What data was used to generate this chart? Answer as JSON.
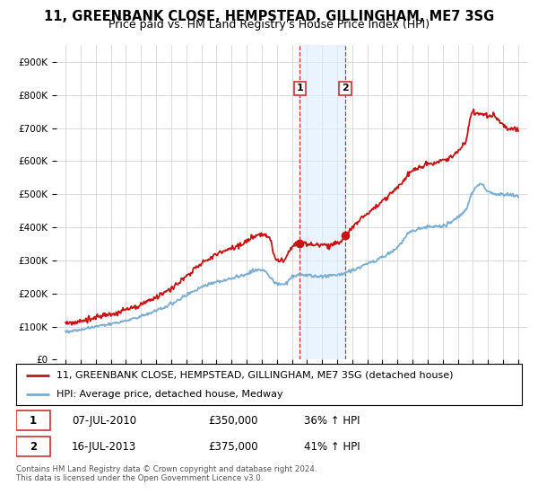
{
  "title": "11, GREENBANK CLOSE, HEMPSTEAD, GILLINGHAM, ME7 3SG",
  "subtitle": "Price paid vs. HM Land Registry's House Price Index (HPI)",
  "legend_line1": "11, GREENBANK CLOSE, HEMPSTEAD, GILLINGHAM, ME7 3SG (detached house)",
  "legend_line2": "HPI: Average price, detached house, Medway",
  "footnote": "Contains HM Land Registry data © Crown copyright and database right 2024.\nThis data is licensed under the Open Government Licence v3.0.",
  "sale1_date": "07-JUL-2010",
  "sale1_price": "£350,000",
  "sale1_hpi": "36% ↑ HPI",
  "sale2_date": "16-JUL-2013",
  "sale2_price": "£375,000",
  "sale2_hpi": "41% ↑ HPI",
  "hpi_color": "#7aadd4",
  "price_color": "#cc1111",
  "marker_color": "#cc1111",
  "highlight_fill": "#ddeeff",
  "highlight_line": "#cc3333",
  "ylim_min": 0,
  "ylim_max": 950000,
  "sale1_year": 2010.52,
  "sale2_year": 2013.54,
  "sale1_value": 350000,
  "sale2_value": 375000,
  "title_fontsize": 10.5,
  "subtitle_fontsize": 9,
  "tick_fontsize": 7.5,
  "legend_fontsize": 8,
  "table_fontsize": 8.5
}
